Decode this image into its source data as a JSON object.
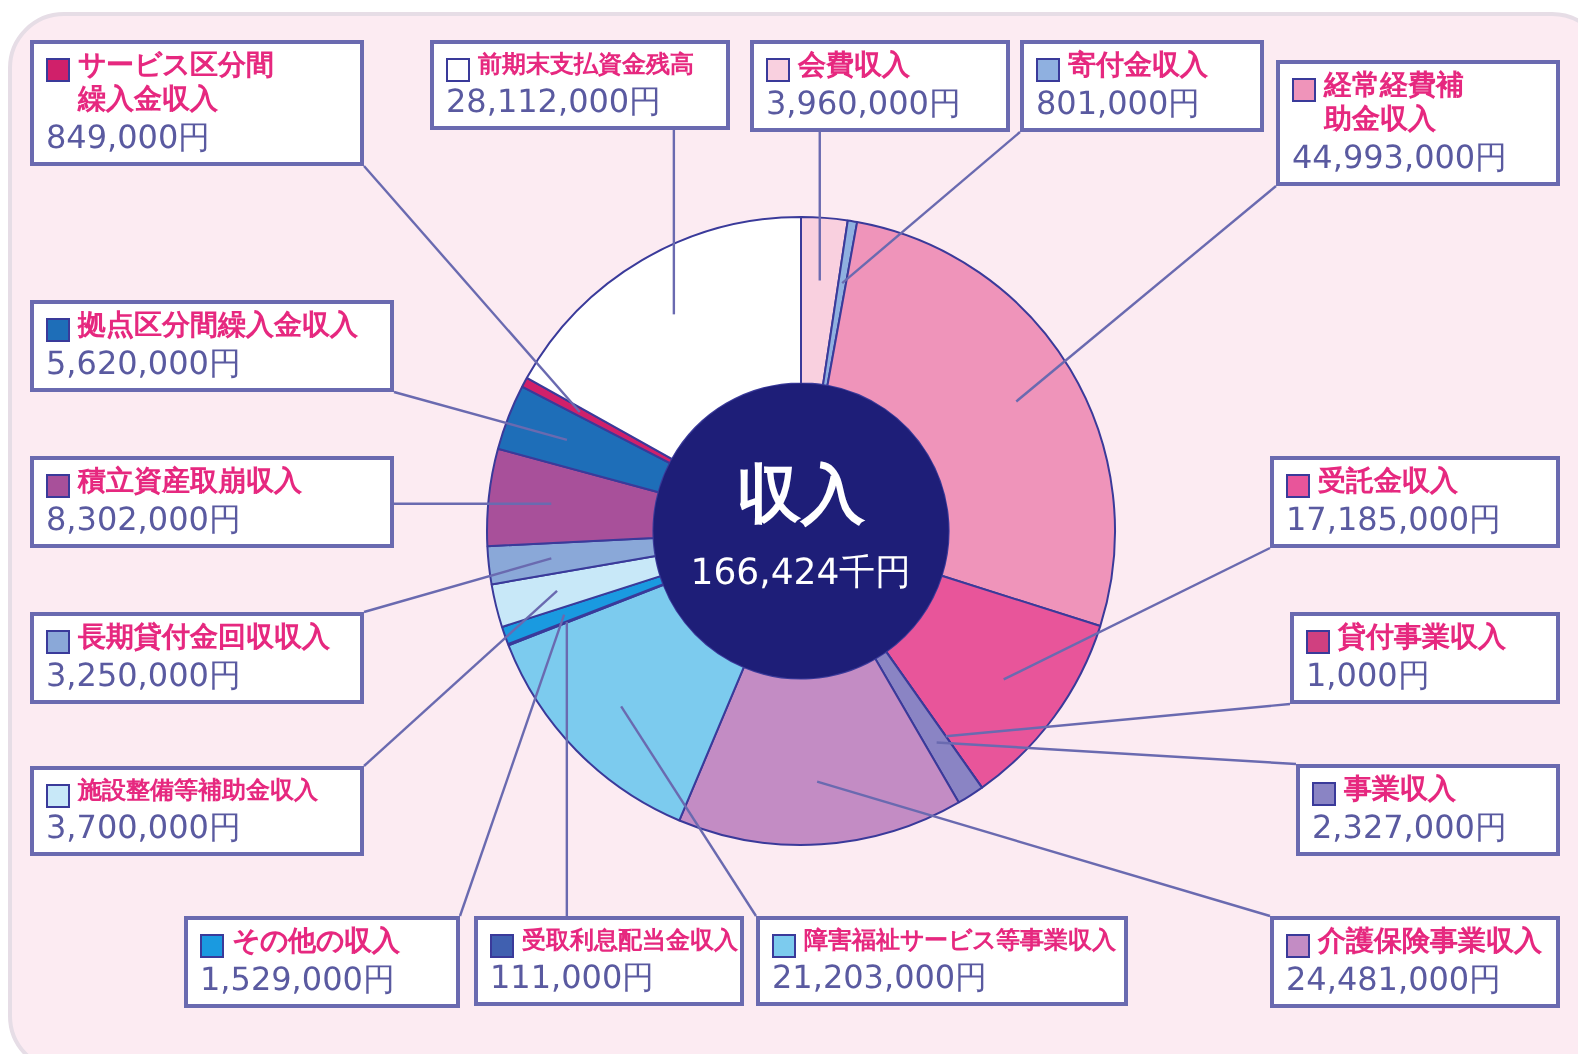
{
  "chart_data": {
    "type": "donut",
    "title": "収入",
    "annotations": [
      "166,424千円"
    ],
    "categories": [
      "会費収入",
      "寄付金収入",
      "経常経費補助金収入",
      "受託金収入",
      "貸付事業収入",
      "事業収入",
      "介護保険事業収入",
      "障害福祉サービス等事業収入",
      "受取利息配当金収入",
      "その他の収入",
      "施設整備等補助金収入",
      "長期貸付金回収収入",
      "積立資産取崩収入",
      "拠点区分間繰入金収入",
      "サービス区分間繰入金収入",
      "前期末支払資金残高"
    ],
    "values": [
      3960000,
      801000,
      44993000,
      17185000,
      1000,
      2327000,
      24481000,
      21203000,
      111000,
      1529000,
      3700000,
      3250000,
      8302000,
      5620000,
      849000,
      28112000
    ],
    "value_labels": [
      "3,960,000円",
      "801,000円",
      "44,993,000円",
      "17,185,000円",
      "1,000円",
      "2,327,000円",
      "24,481,000円",
      "21,203,000円",
      "111,000円",
      "1,529,000円",
      "3,700,000円",
      "3,250,000円",
      "8,302,000円",
      "5,620,000円",
      "849,000円",
      "28,112,000円"
    ],
    "legend": "left",
    "colors": [
      "#f9d0df",
      "#8fb0e0",
      "#ef94ba",
      "#e8559a",
      "#d04080",
      "#8a84c4",
      "#c38cc4",
      "#7ccbee",
      "#4060b0",
      "#1a9ae0",
      "#c8e8f8",
      "#8aa8d8",
      "#a8509a",
      "#1e6eb8",
      "#d0206a",
      "#ffffff"
    ]
  }
}
